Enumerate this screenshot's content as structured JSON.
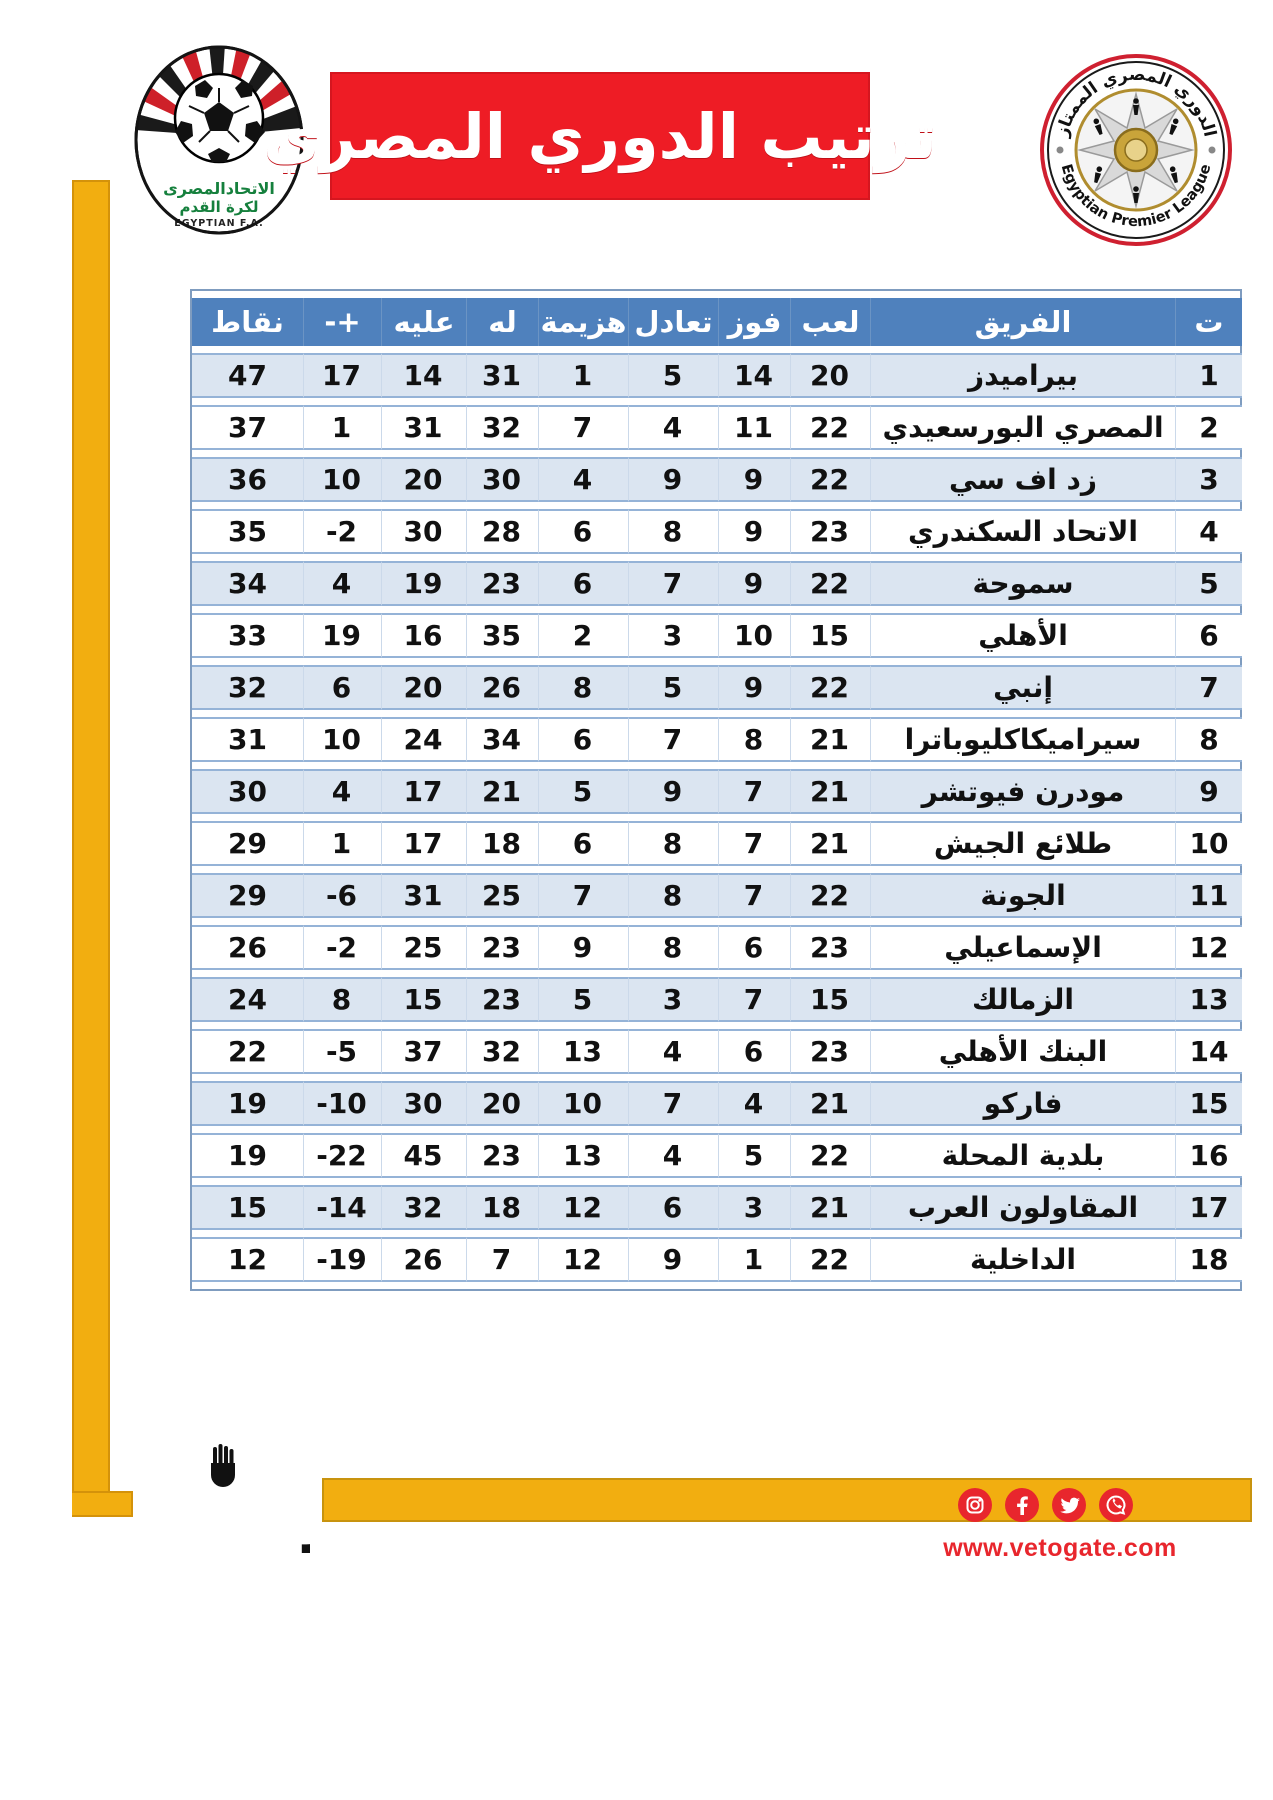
{
  "header": {
    "title": "ترتيب الدوري المصري",
    "fa_logo": {
      "line1": "الاتحادالمصرى",
      "line2": "لكرة القدم",
      "line3": "EGYPTIAN F.A."
    },
    "epl_logo": {
      "arabic": "الدوري المصري الممتاز",
      "english": "Egyptian Premier League"
    }
  },
  "table": {
    "columns": [
      {
        "key": "pos",
        "label": "ت"
      },
      {
        "key": "team",
        "label": "الفريق"
      },
      {
        "key": "played",
        "label": "لعب"
      },
      {
        "key": "won",
        "label": "فوز"
      },
      {
        "key": "drawn",
        "label": "تعادل"
      },
      {
        "key": "lost",
        "label": "هزيمة"
      },
      {
        "key": "gf",
        "label": "له"
      },
      {
        "key": "ga",
        "label": "عليه"
      },
      {
        "key": "gd",
        "label": "+-"
      },
      {
        "key": "pts",
        "label": "نقاط"
      }
    ],
    "rows": [
      {
        "pos": "1",
        "team": "بيراميدز",
        "played": "20",
        "won": "14",
        "drawn": "5",
        "lost": "1",
        "gf": "31",
        "ga": "14",
        "gd": "17",
        "pts": "47"
      },
      {
        "pos": "2",
        "team": "المصري البورسعيدي",
        "played": "22",
        "won": "11",
        "drawn": "4",
        "lost": "7",
        "gf": "32",
        "ga": "31",
        "gd": "1",
        "pts": "37"
      },
      {
        "pos": "3",
        "team": "زد اف سي",
        "played": "22",
        "won": "9",
        "drawn": "9",
        "lost": "4",
        "gf": "30",
        "ga": "20",
        "gd": "10",
        "pts": "36"
      },
      {
        "pos": "4",
        "team": "الاتحاد السكندري",
        "played": "23",
        "won": "9",
        "drawn": "8",
        "lost": "6",
        "gf": "28",
        "ga": "30",
        "gd": "-2",
        "pts": "35"
      },
      {
        "pos": "5",
        "team": "سموحة",
        "played": "22",
        "won": "9",
        "drawn": "7",
        "lost": "6",
        "gf": "23",
        "ga": "19",
        "gd": "4",
        "pts": "34"
      },
      {
        "pos": "6",
        "team": "الأهلي",
        "played": "15",
        "won": "10",
        "drawn": "3",
        "lost": "2",
        "gf": "35",
        "ga": "16",
        "gd": "19",
        "pts": "33"
      },
      {
        "pos": "7",
        "team": "إنبي",
        "played": "22",
        "won": "9",
        "drawn": "5",
        "lost": "8",
        "gf": "26",
        "ga": "20",
        "gd": "6",
        "pts": "32"
      },
      {
        "pos": "8",
        "team": "سيراميكاكليوباترا",
        "played": "21",
        "won": "8",
        "drawn": "7",
        "lost": "6",
        "gf": "34",
        "ga": "24",
        "gd": "10",
        "pts": "31"
      },
      {
        "pos": "9",
        "team": "مودرن فيوتشر",
        "played": "21",
        "won": "7",
        "drawn": "9",
        "lost": "5",
        "gf": "21",
        "ga": "17",
        "gd": "4",
        "pts": "30"
      },
      {
        "pos": "10",
        "team": "طلائع الجيش",
        "played": "21",
        "won": "7",
        "drawn": "8",
        "lost": "6",
        "gf": "18",
        "ga": "17",
        "gd": "1",
        "pts": "29"
      },
      {
        "pos": "11",
        "team": "الجونة",
        "played": "22",
        "won": "7",
        "drawn": "8",
        "lost": "7",
        "gf": "25",
        "ga": "31",
        "gd": "-6",
        "pts": "29"
      },
      {
        "pos": "12",
        "team": "الإسماعيلي",
        "played": "23",
        "won": "6",
        "drawn": "8",
        "lost": "9",
        "gf": "23",
        "ga": "25",
        "gd": "-2",
        "pts": "26"
      },
      {
        "pos": "13",
        "team": "الزمالك",
        "played": "15",
        "won": "7",
        "drawn": "3",
        "lost": "5",
        "gf": "23",
        "ga": "15",
        "gd": "8",
        "pts": "24"
      },
      {
        "pos": "14",
        "team": "البنك الأهلي",
        "played": "23",
        "won": "6",
        "drawn": "4",
        "lost": "13",
        "gf": "32",
        "ga": "37",
        "gd": "-5",
        "pts": "22"
      },
      {
        "pos": "15",
        "team": "فاركو",
        "played": "21",
        "won": "4",
        "drawn": "7",
        "lost": "10",
        "gf": "20",
        "ga": "30",
        "gd": "-10",
        "pts": "19"
      },
      {
        "pos": "16",
        "team": "بلدية المحلة",
        "played": "22",
        "won": "5",
        "drawn": "4",
        "lost": "13",
        "gf": "23",
        "ga": "45",
        "gd": "-22",
        "pts": "19"
      },
      {
        "pos": "17",
        "team": "المقاولون العرب",
        "played": "21",
        "won": "3",
        "drawn": "6",
        "lost": "12",
        "gf": "18",
        "ga": "32",
        "gd": "-14",
        "pts": "15"
      },
      {
        "pos": "18",
        "team": "الداخلية",
        "played": "22",
        "won": "1",
        "drawn": "9",
        "lost": "12",
        "gf": "7",
        "ga": "26",
        "gd": "-19",
        "pts": "12"
      }
    ]
  },
  "footer": {
    "brand": "ڤيتو",
    "website": "www.vetogate.com",
    "social_icons": [
      "instagram-icon",
      "facebook-icon",
      "twitter-icon",
      "whatsapp-icon"
    ]
  },
  "colors": {
    "banner_red": "#ee1c25",
    "header_blue": "#4f81bd",
    "row_light_blue": "#dbe5f1",
    "row_border_blue": "#95b3d7",
    "frame_yellow": "#f2ae10",
    "veto_red": "#e8262d"
  }
}
